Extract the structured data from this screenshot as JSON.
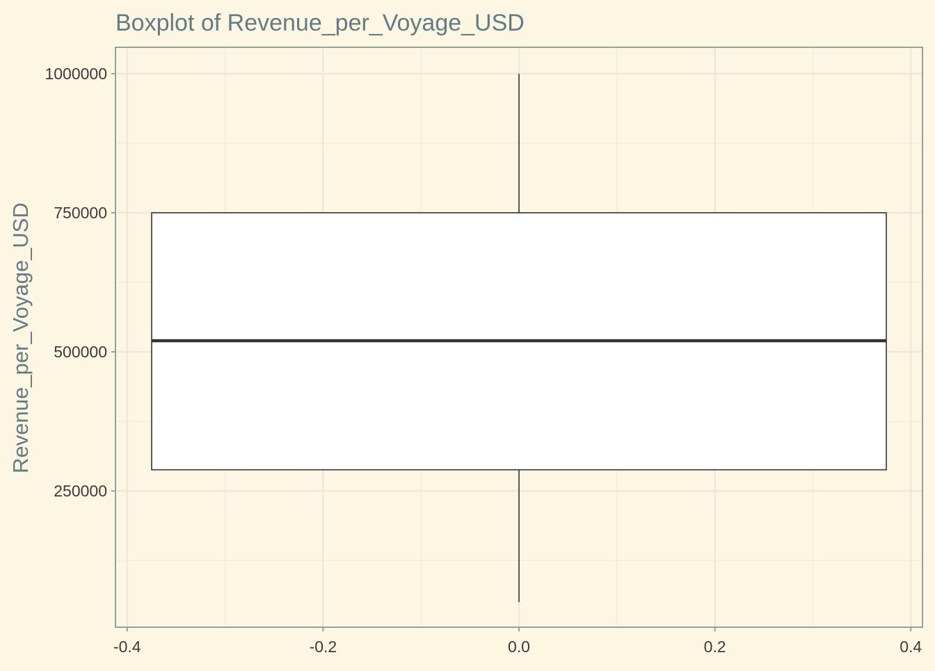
{
  "chart_data": {
    "type": "boxplot",
    "title": "Boxplot of Revenue_per_Voyage_USD",
    "xlabel": "",
    "ylabel": "Revenue_per_Voyage_USD",
    "xlim": [
      -0.42,
      0.42
    ],
    "ylim": [
      50000,
      1000000
    ],
    "x_ticks": [
      -0.4,
      -0.2,
      0.0,
      0.2,
      0.4
    ],
    "x_tick_labels": [
      "-0.4",
      "-0.2",
      "0.0",
      "0.2",
      "0.4"
    ],
    "y_ticks": [
      250000,
      500000,
      750000,
      1000000
    ],
    "y_tick_labels": [
      "250000",
      "500000",
      "750000",
      "1000000"
    ],
    "box": {
      "x_center": 0.0,
      "x_left": -0.375,
      "x_right": 0.375,
      "whisker_low": 50000,
      "q1": 288000,
      "median": 520000,
      "q3": 750000,
      "whisker_high": 1000000
    },
    "grid": true,
    "legend": "none",
    "colors": {
      "background": "#fdf6e3",
      "grid": "#eee8d5",
      "axis": "#93a1a1",
      "box_fill": "#ffffff",
      "box_stroke": "#333333",
      "title": "#657b83",
      "tick_text": "#3b3b3b"
    }
  }
}
